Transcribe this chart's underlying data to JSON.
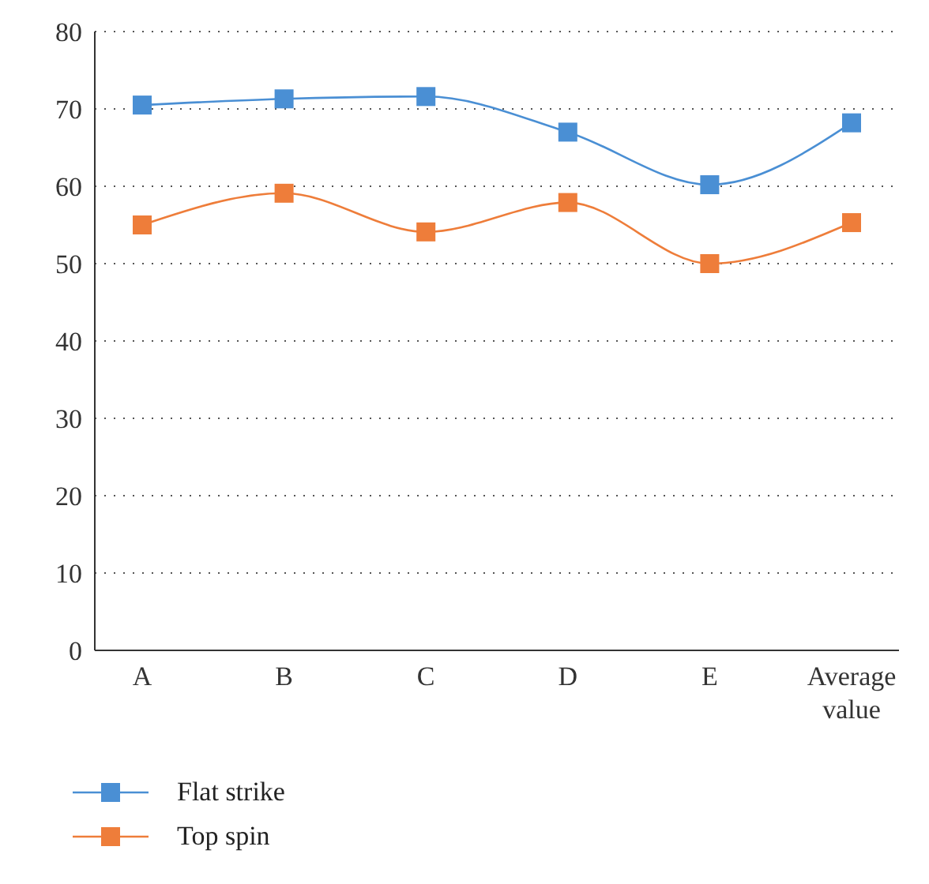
{
  "chart_data": {
    "type": "line",
    "categories": [
      "A",
      "B",
      "C",
      "D",
      "E",
      "Average value"
    ],
    "series": [
      {
        "name": "Flat strike",
        "color": "#4a8fd4",
        "values": [
          70.5,
          71.3,
          71.6,
          67,
          60.2,
          68.2
        ]
      },
      {
        "name": "Top spin",
        "color": "#ee7d3a",
        "values": [
          55,
          59.1,
          54.1,
          57.9,
          50,
          55.3
        ]
      }
    ],
    "ylim": [
      0,
      80
    ],
    "yticks": [
      0,
      10,
      20,
      30,
      40,
      50,
      60,
      70,
      80
    ],
    "grid": "y",
    "legend": "bottom left",
    "marker": "square",
    "line_style": "solid"
  }
}
